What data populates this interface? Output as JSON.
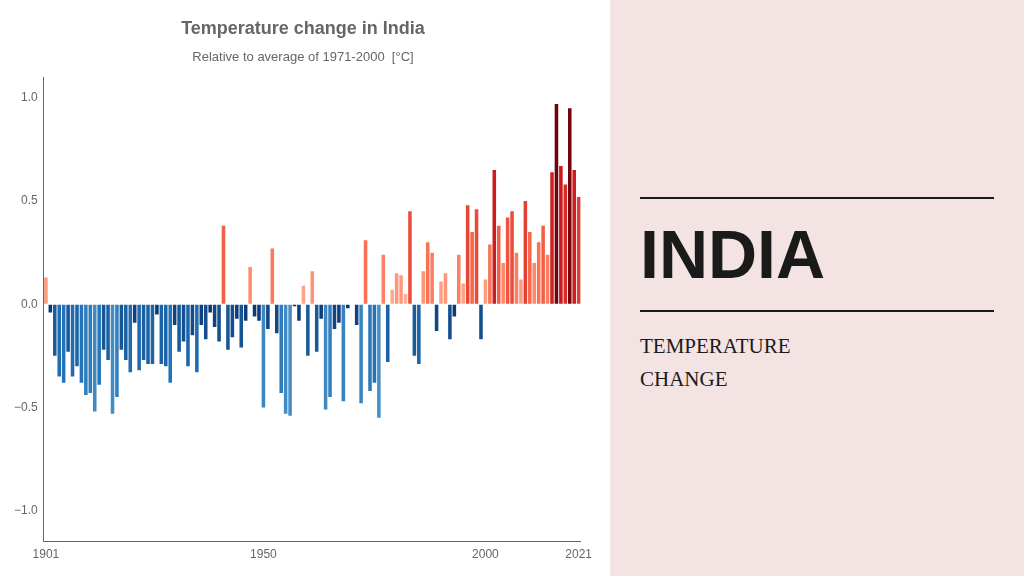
{
  "chart_data": {
    "type": "bar",
    "title": "Temperature change in India",
    "subtitle": "Relative to average of 1971-2000  [°C]",
    "annotations": [
      "INDIA",
      "TEMPERATURE\nCHANGE"
    ],
    "x": [
      1901,
      1902,
      1903,
      1904,
      1905,
      1906,
      1907,
      1908,
      1909,
      1910,
      1911,
      1912,
      1913,
      1914,
      1915,
      1916,
      1917,
      1918,
      1919,
      1920,
      1921,
      1922,
      1923,
      1924,
      1925,
      1926,
      1927,
      1928,
      1929,
      1930,
      1931,
      1932,
      1933,
      1934,
      1935,
      1936,
      1937,
      1938,
      1939,
      1940,
      1941,
      1942,
      1943,
      1944,
      1945,
      1946,
      1947,
      1948,
      1949,
      1950,
      1951,
      1952,
      1953,
      1954,
      1955,
      1956,
      1957,
      1958,
      1959,
      1960,
      1961,
      1962,
      1963,
      1964,
      1965,
      1966,
      1967,
      1968,
      1969,
      1970,
      1971,
      1972,
      1973,
      1974,
      1975,
      1976,
      1977,
      1978,
      1979,
      1980,
      1981,
      1982,
      1983,
      1984,
      1985,
      1986,
      1987,
      1988,
      1989,
      1990,
      1991,
      1992,
      1993,
      1994,
      1995,
      1996,
      1997,
      1998,
      1999,
      2000,
      2001,
      2002,
      2003,
      2004,
      2005,
      2006,
      2007,
      2008,
      2009,
      2010,
      2011,
      2012,
      2013,
      2014,
      2015,
      2016,
      2017,
      2018,
      2019,
      2020,
      2021
    ],
    "values": [
      0.13,
      -0.04,
      -0.25,
      -0.35,
      -0.38,
      -0.23,
      -0.35,
      -0.3,
      -0.38,
      -0.44,
      -0.43,
      -0.52,
      -0.39,
      -0.22,
      -0.27,
      -0.53,
      -0.45,
      -0.22,
      -0.27,
      -0.33,
      -0.09,
      -0.32,
      -0.27,
      -0.29,
      -0.29,
      -0.05,
      -0.29,
      -0.3,
      -0.38,
      -0.1,
      -0.23,
      -0.18,
      -0.3,
      -0.15,
      -0.33,
      -0.1,
      -0.17,
      -0.04,
      -0.11,
      -0.18,
      0.38,
      -0.22,
      -0.16,
      -0.07,
      -0.21,
      -0.08,
      0.18,
      -0.06,
      -0.08,
      -0.5,
      -0.12,
      0.27,
      -0.14,
      -0.43,
      -0.53,
      -0.54,
      -0.01,
      -0.08,
      0.09,
      -0.25,
      0.16,
      -0.23,
      -0.07,
      -0.51,
      -0.45,
      -0.12,
      -0.09,
      -0.47,
      -0.02,
      0.0,
      -0.1,
      -0.48,
      0.31,
      -0.42,
      -0.38,
      -0.55,
      0.24,
      -0.28,
      0.07,
      0.15,
      0.14,
      0.05,
      0.45,
      -0.25,
      -0.29,
      0.16,
      0.3,
      0.25,
      -0.13,
      0.11,
      0.15,
      -0.17,
      -0.06,
      0.24,
      0.1,
      0.48,
      0.35,
      0.46,
      -0.17,
      0.12,
      0.29,
      0.65,
      0.38,
      0.2,
      0.42,
      0.45,
      0.25,
      0.12,
      0.5,
      0.35,
      0.2,
      0.3,
      0.38,
      0.24,
      0.64,
      0.97,
      0.67,
      0.58,
      0.95,
      0.65,
      0.52
    ],
    "colors": [
      "#fc9b7f",
      "#0b3773",
      "#195c9e",
      "#206eb2",
      "#2473b6",
      "#185999",
      "#206eb2",
      "#1c65a8",
      "#2473b6",
      "#307dbc",
      "#2e7cbb",
      "#408ac3",
      "#2675b7",
      "#175797",
      "#1a60a2",
      "#428cc4",
      "#327fbd",
      "#175797",
      "#1a60a2",
      "#1f6bae",
      "#0e407d",
      "#1e69ac",
      "#1a60a2",
      "#1c63a6",
      "#1c63a6",
      "#0b3975",
      "#1c63a6",
      "#1c65a8",
      "#2473b6",
      "#0f427f",
      "#185999",
      "#14508f",
      "#1c65a8",
      "#124b89",
      "#1f6bae",
      "#0f427f",
      "#144e8d",
      "#0b3773",
      "#104481",
      "#14508f",
      "#f45f44",
      "#175797",
      "#134c8b",
      "#0d3c79",
      "#165595",
      "#0d3e7b",
      "#fb8f72",
      "#0c3b77",
      "#0d3e7b",
      "#3c87c1",
      "#104583",
      "#fb795b",
      "#124987",
      "#2e7cbb",
      "#428cc4",
      "#448ec5",
      "#09326d",
      "#0d3e7b",
      "#fca58a",
      "#195c9e",
      "#fc9477",
      "#185999",
      "#0d3c79",
      "#3e89c2",
      "#327fbd",
      "#104583",
      "#0e407d",
      "#3682be",
      "#09346f",
      "#ffffff",
      "#0f427f",
      "#3884bf",
      "#fb7050",
      "#2c7aba",
      "#2473b6",
      "#4690c6",
      "#fb8162",
      "#1b62a4",
      "#fcaa8f",
      "#fc977a",
      "#fc997c",
      "#fcaf94",
      "#ea4d3a",
      "#195c9e",
      "#1c63a6",
      "#fc9477",
      "#fb7253",
      "#fb7e60",
      "#114785",
      "#fca084",
      "#fc977a",
      "#144e8d",
      "#0c3b77",
      "#fb8162",
      "#fca387",
      "#e64636",
      "#f96648",
      "#e94b39",
      "#144e8d",
      "#fc9e82",
      "#fb7555",
      "#cd1c1f",
      "#f45f44",
      "#fb8a6d",
      "#ef553e",
      "#ea4d3a",
      "#fb7e60",
      "#fc9e82",
      "#e34134",
      "#f96648",
      "#fb8a6d",
      "#fb7253",
      "#f45f44",
      "#fb8162",
      "#cf1f21",
      "#70020e",
      "#ca181d",
      "#d72d29",
      "#76040f",
      "#cd1c1f",
      "#e03c31"
    ],
    "xlim": [
      1900.5,
      2021.5
    ],
    "xticks": [
      1901,
      1950,
      2000,
      2021
    ],
    "ylim": [
      -1.15,
      1.1
    ],
    "yticks": [
      {
        "value": -1.0,
        "label": "−1.0"
      },
      {
        "value": -0.5,
        "label": "−0.5"
      },
      {
        "value": 0.0,
        "label": "0.0"
      },
      {
        "value": 0.5,
        "label": "0.5"
      },
      {
        "value": 1.0,
        "label": "1.0"
      }
    ],
    "grid": false
  }
}
